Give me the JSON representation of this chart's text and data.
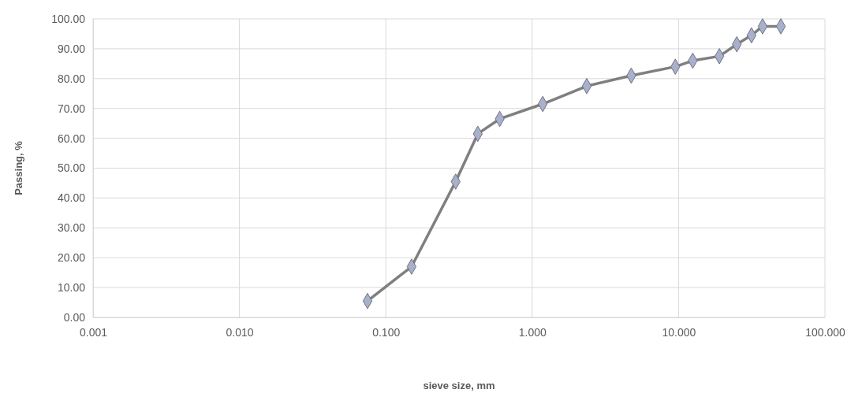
{
  "chart_data": {
    "type": "line",
    "xlabel": "sieve size, mm",
    "ylabel": "Passing, %",
    "log": "x",
    "x": [
      0.075,
      0.15,
      0.3,
      0.425,
      0.6,
      1.18,
      2.36,
      4.75,
      9.5,
      12.5,
      19,
      25,
      31.5,
      37.5,
      50
    ],
    "series": [
      {
        "color": "#7f7f7f",
        "values": [
          5.5,
          17,
          45.5,
          61.5,
          66.5,
          71.5,
          77.5,
          81,
          84,
          86,
          87.5,
          91.5,
          94.5,
          97.5,
          97.5
        ]
      }
    ],
    "xlim": [
      0.001,
      100
    ],
    "ylim": [
      0,
      100
    ],
    "xticks": [
      {
        "value": 0.001,
        "label": "0.001"
      },
      {
        "value": 0.01,
        "label": "0.010"
      },
      {
        "value": 0.1,
        "label": "0.100"
      },
      {
        "value": 1,
        "label": "1.000"
      },
      {
        "value": 10,
        "label": "10.000"
      },
      {
        "value": 100,
        "label": "100.000"
      }
    ],
    "yticks": [
      {
        "value": 0,
        "label": "0.00"
      },
      {
        "value": 10,
        "label": "10.00"
      },
      {
        "value": 20,
        "label": "20.00"
      },
      {
        "value": 30,
        "label": "30.00"
      },
      {
        "value": 40,
        "label": "40.00"
      },
      {
        "value": 50,
        "label": "50.00"
      },
      {
        "value": 60,
        "label": "60.00"
      },
      {
        "value": 70,
        "label": "70.00"
      },
      {
        "value": 80,
        "label": "80.00"
      },
      {
        "value": 90,
        "label": "90.00"
      },
      {
        "value": 100,
        "label": "100.00"
      }
    ],
    "grid": true,
    "marker": "diamond",
    "line_style": "solid"
  }
}
